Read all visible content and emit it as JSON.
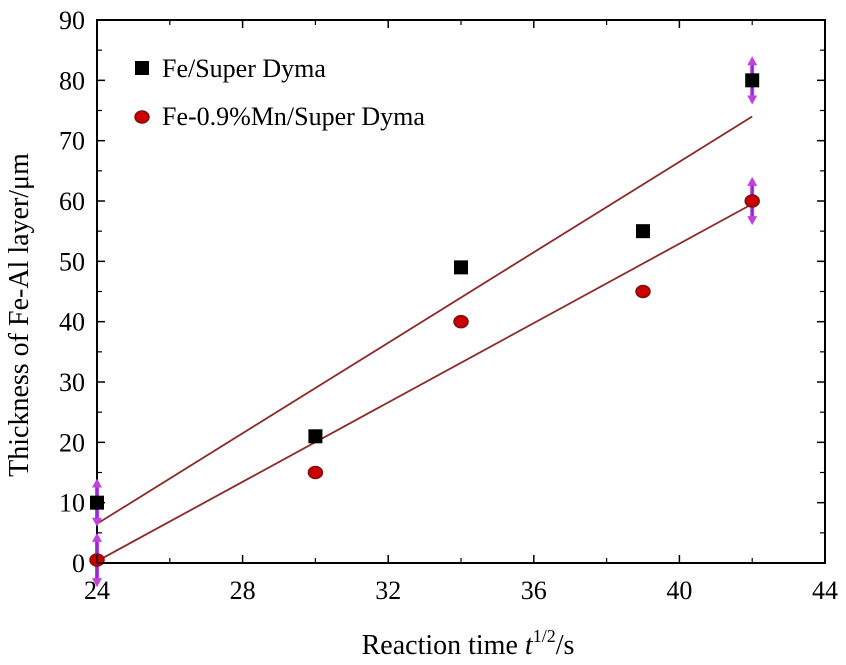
{
  "chart_data": {
    "type": "scatter",
    "xlabel": "Reaction time t^{1/2}/s",
    "xlabel_parts": {
      "main": "Reaction time ",
      "italic": "t",
      "sup": "1/2",
      "tail": "/s"
    },
    "ylabel": "Thickness of Fe-Al layer/μm",
    "xlim": [
      24,
      44
    ],
    "ylim": [
      0,
      90
    ],
    "xticks": [
      24,
      28,
      32,
      36,
      40,
      44
    ],
    "yticks": [
      0,
      10,
      20,
      30,
      40,
      50,
      60,
      70,
      80,
      90
    ],
    "grid": false,
    "legend_position": "top-left",
    "series": [
      {
        "name": "Fe/Super Dyma",
        "marker": "square",
        "color": "#000000",
        "x": [
          24,
          30,
          34,
          39,
          42
        ],
        "y": [
          10,
          21,
          49,
          55,
          80
        ],
        "fit_line": {
          "x": [
            24,
            42
          ],
          "y": [
            6.5,
            74
          ]
        }
      },
      {
        "name": "Fe-0.9%Mn/Super Dyma",
        "marker": "circle",
        "color": "#cc0000",
        "x": [
          24,
          30,
          34,
          39,
          42
        ],
        "y": [
          0.5,
          15,
          40,
          45,
          60
        ],
        "fit_line": {
          "x": [
            24,
            42
          ],
          "y": [
            0.3,
            59.5
          ]
        }
      }
    ],
    "error_bars": [
      {
        "x": 24,
        "y_low": 6,
        "y_high": 14
      },
      {
        "x": 24,
        "y_low": -4,
        "y_high": 5
      },
      {
        "x": 42,
        "y_low": 76,
        "y_high": 84
      },
      {
        "x": 42,
        "y_low": 56,
        "y_high": 64
      }
    ],
    "colors": {
      "fit_line": "#8b2a2a",
      "error_bar": "#c040e0",
      "error_bar_core": "#7a2bd0"
    }
  }
}
